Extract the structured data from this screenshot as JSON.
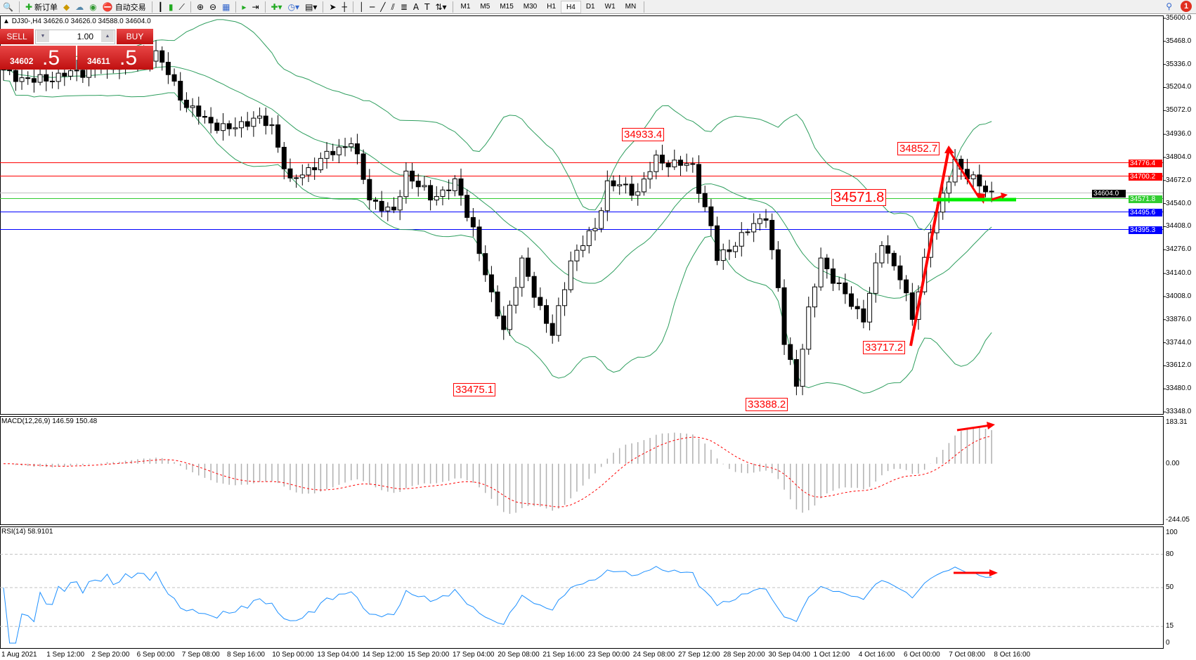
{
  "toolbar": {
    "new_order": "新订单",
    "auto_trading": "自动交易",
    "timeframes": [
      "M1",
      "M5",
      "M15",
      "M30",
      "H1",
      "H4",
      "D1",
      "W1",
      "MN"
    ],
    "active_timeframe": "H4",
    "notification_count": "1"
  },
  "chart": {
    "header": "DJ30-,H4  34626.0 34626.0 34588.0 34604.0",
    "trade_panel": {
      "sell": "SELL",
      "buy": "BUY",
      "lot": "1.00",
      "sell_small": "34602",
      "sell_big": ".5",
      "buy_small": "34611",
      "buy_big": ".5"
    },
    "price_axis": [
      "35600.0",
      "35468.0",
      "35336.0",
      "35204.0",
      "35072.0",
      "34936.0",
      "34804.0",
      "34672.0",
      "34540.0",
      "34408.0",
      "34276.0",
      "34140.0",
      "34008.0",
      "33876.0",
      "33744.0",
      "33612.0",
      "33480.0",
      "33348.0"
    ],
    "levels": [
      {
        "price": "34776.4",
        "color": "#ff0000"
      },
      {
        "price": "34700.2",
        "color": "#ff0000"
      },
      {
        "price": "34604.0",
        "color": "#000000"
      },
      {
        "price": "34571.8",
        "color": "#32cd32"
      },
      {
        "price": "34495.6",
        "color": "#0000ff"
      },
      {
        "price": "34395.3",
        "color": "#0000ff"
      }
    ],
    "annotations": [
      "34933.4",
      "34852.7",
      "34571.8",
      "33475.1",
      "33388.2",
      "33717.2"
    ],
    "price_path": [
      [
        0,
        35290
      ],
      [
        5,
        35240
      ],
      [
        10,
        35277
      ],
      [
        18,
        35330
      ],
      [
        25,
        35400
      ],
      [
        30,
        35100
      ],
      [
        33,
        35020
      ],
      [
        37,
        34960
      ],
      [
        41,
        35030
      ],
      [
        44,
        34980
      ],
      [
        47,
        34657
      ],
      [
        52,
        34790
      ],
      [
        57,
        34900
      ],
      [
        60,
        34570
      ],
      [
        64,
        34480
      ],
      [
        66,
        34720
      ],
      [
        70,
        34570
      ],
      [
        74,
        34657
      ],
      [
        77,
        34400
      ],
      [
        80,
        34000
      ],
      [
        82,
        33830
      ],
      [
        85,
        34200
      ],
      [
        90,
        33780
      ],
      [
        93,
        34220
      ],
      [
        97,
        34400
      ],
      [
        99,
        34657
      ],
      [
        104,
        34610
      ],
      [
        107,
        34790
      ],
      [
        113,
        34750
      ],
      [
        116,
        34400
      ],
      [
        117,
        34220
      ],
      [
        121,
        34350
      ],
      [
        125,
        34480
      ],
      [
        127,
        34045
      ],
      [
        128,
        33740
      ],
      [
        130,
        33520
      ],
      [
        132,
        33920
      ],
      [
        134,
        34220
      ],
      [
        139,
        33960
      ],
      [
        141,
        33890
      ],
      [
        144,
        34310
      ],
      [
        147,
        34130
      ],
      [
        149,
        33870
      ],
      [
        152,
        34400
      ],
      [
        154,
        34570
      ],
      [
        156,
        34790
      ],
      [
        158,
        34700
      ],
      [
        160,
        34640
      ],
      [
        162,
        34604
      ]
    ],
    "bollinger_color": "#2e9e5e",
    "bull_color": "#ffffff",
    "bear_color": "#000000"
  },
  "macd": {
    "label": "MACD(12,26,9) 146.59 150.48",
    "axis": [
      "183.31",
      "0.00",
      "-244.05"
    ],
    "range": [
      -244.05,
      183.31
    ],
    "signal_color": "#ff0000"
  },
  "rsi": {
    "label": "RSI(14) 58.9101",
    "axis": [
      "100",
      "80",
      "50",
      "15",
      "0"
    ],
    "levels": [
      80,
      50,
      15
    ],
    "line_color": "#1e90ff"
  },
  "time_axis": [
    "1 Aug 2021",
    "1 Sep 12:00",
    "2 Sep 20:00",
    "6 Sep 00:00",
    "7 Sep 08:00",
    "8 Sep 16:00",
    "10 Sep 00:00",
    "13 Sep 04:00",
    "14 Sep 12:00",
    "15 Sep 20:00",
    "17 Sep 04:00",
    "20 Sep 08:00",
    "21 Sep 16:00",
    "23 Sep 00:00",
    "24 Sep 08:00",
    "27 Sep 12:00",
    "28 Sep 20:00",
    "30 Sep 04:00",
    "1 Oct 12:00",
    "4 Oct 16:00",
    "6 Oct 00:00",
    "7 Oct 08:00",
    "8 Oct 16:00"
  ]
}
